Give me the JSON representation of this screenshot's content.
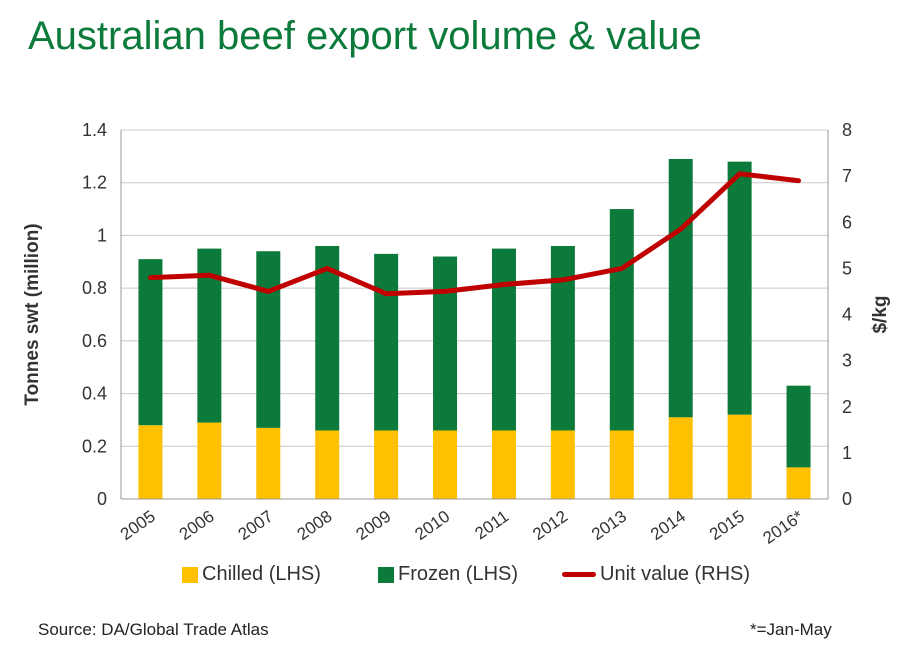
{
  "title": "Australian beef export volume & value",
  "source": "Source: DA/Global Trade Atlas",
  "note": "*=Jan-May",
  "colors": {
    "title": "#0b7a3b",
    "chilled": "#ffc000",
    "frozen": "#0b7a3b",
    "unit_value": "#c00000"
  },
  "chart_data": {
    "type": "bar",
    "stacked": true,
    "categories": [
      "2005",
      "2006",
      "2007",
      "2008",
      "2009",
      "2010",
      "2011",
      "2012",
      "2013",
      "2014",
      "2015",
      "2016*"
    ],
    "series": [
      {
        "name": "Chilled (LHS)",
        "axis": "left",
        "type": "bar",
        "color": "#ffc000",
        "values": [
          0.28,
          0.29,
          0.27,
          0.26,
          0.26,
          0.26,
          0.26,
          0.26,
          0.26,
          0.31,
          0.32,
          0.12
        ]
      },
      {
        "name": "Frozen (LHS)",
        "axis": "left",
        "type": "bar",
        "color": "#0b7a3b",
        "values": [
          0.63,
          0.66,
          0.67,
          0.7,
          0.67,
          0.66,
          0.69,
          0.7,
          0.84,
          0.98,
          0.96,
          0.31
        ]
      },
      {
        "name": "Unit value (RHS)",
        "axis": "right",
        "type": "line",
        "color": "#c00000",
        "values": [
          4.8,
          4.85,
          4.5,
          5.0,
          4.45,
          4.5,
          4.65,
          4.75,
          5.0,
          5.85,
          7.05,
          6.9
        ]
      }
    ],
    "ylabel": "Tonnes swt (million)",
    "ylim": [
      0,
      1.4
    ],
    "yticks": [
      "0",
      "0.2",
      "0.4",
      "0.6",
      "0.8",
      "1",
      "1.2",
      "1.4"
    ],
    "y2label": "$/kg",
    "y2lim": [
      0,
      8
    ],
    "y2ticks": [
      "0",
      "1",
      "2",
      "3",
      "4",
      "5",
      "6",
      "7",
      "8"
    ],
    "grid": true,
    "legend": "bottom"
  }
}
